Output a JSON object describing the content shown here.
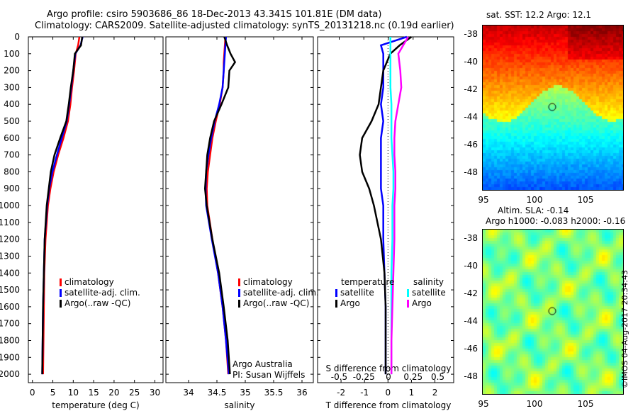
{
  "title": {
    "line1": "Argo profile: csiro 5903686_86 18-Dec-2013 43.341S 101.81E (DM data)",
    "line2": "Climatology: CARS2009. Satellite-adjusted climatology: synTS_20131218.nc (0.19d earlier)"
  },
  "colors": {
    "climatology": "#ff0000",
    "satellite": "#0000ff",
    "argo": "#000000",
    "sal_sat": "#00ffff",
    "sal_argo": "#ff00ff"
  },
  "chart_data": [
    {
      "type": "line",
      "xlabel": "temperature (deg C)",
      "ylabel": "",
      "xlim": [
        -1,
        32
      ],
      "ylim": [
        2050,
        0
      ],
      "xticks": [
        "0",
        "5",
        "10",
        "15",
        "20",
        "25",
        "30"
      ],
      "yticks": [
        "0",
        "100",
        "200",
        "300",
        "400",
        "500",
        "600",
        "700",
        "800",
        "900",
        "1000",
        "1100",
        "1200",
        "1300",
        "1400",
        "1500",
        "1600",
        "1700",
        "1800",
        "1900",
        "2000"
      ],
      "legend": [
        "climatology",
        "satellite-adj. clim.",
        "Argo(..raw -QC)"
      ],
      "depth": [
        0,
        50,
        100,
        200,
        300,
        400,
        500,
        600,
        700,
        800,
        900,
        1000,
        1200,
        1400,
        1600,
        1800,
        2000
      ],
      "series": [
        {
          "name": "climatology",
          "values": [
            11.5,
            11.2,
            10.6,
            10.2,
            9.7,
            9.3,
            8.7,
            7.6,
            6.3,
            5.2,
            4.4,
            3.8,
            3.2,
            2.9,
            2.8,
            2.7,
            2.6
          ]
        },
        {
          "name": "satellite-adj. clim.",
          "values": [
            12.3,
            11.8,
            10.5,
            10.0,
            9.5,
            9.0,
            8.4,
            7.2,
            6.0,
            4.9,
            4.1,
            3.6,
            3.0,
            2.8,
            2.6,
            2.5,
            2.4
          ]
        },
        {
          "name": "Argo(..raw -QC)",
          "values": [
            12.2,
            11.9,
            10.4,
            10.0,
            9.4,
            8.9,
            8.3,
            6.8,
            5.4,
            4.5,
            4.0,
            3.5,
            3.0,
            2.8,
            2.6,
            2.5,
            2.4
          ]
        }
      ]
    },
    {
      "type": "line",
      "xlabel": "salinity",
      "xlim": [
        33.6,
        36.2
      ],
      "ylim": [
        2050,
        0
      ],
      "xticks": [
        "34",
        "34.5",
        "35",
        "35.5",
        "36"
      ],
      "legend": [
        "climatology",
        "satellite-adj. clim.",
        "Argo(..raw -QC)"
      ],
      "annotation": [
        "Argo Australia",
        "PI: Susan Wijffels"
      ],
      "depth": [
        0,
        50,
        100,
        150,
        200,
        300,
        400,
        500,
        600,
        700,
        800,
        900,
        1000,
        1200,
        1400,
        1600,
        1800,
        2000
      ],
      "series": [
        {
          "name": "climatology",
          "values": [
            34.65,
            34.64,
            34.63,
            34.62,
            34.62,
            34.6,
            34.55,
            34.48,
            34.42,
            34.38,
            34.34,
            34.32,
            34.33,
            34.42,
            34.52,
            34.6,
            34.66,
            34.7
          ]
        },
        {
          "name": "satellite-adj. clim.",
          "values": [
            34.66,
            34.65,
            34.64,
            34.63,
            34.62,
            34.6,
            34.54,
            34.46,
            34.4,
            34.35,
            34.31,
            34.3,
            34.31,
            34.41,
            34.52,
            34.6,
            34.66,
            34.71
          ]
        },
        {
          "name": "Argo(..raw -QC)",
          "values": [
            34.63,
            34.68,
            34.74,
            34.82,
            34.72,
            34.7,
            34.58,
            34.45,
            34.38,
            34.33,
            34.31,
            34.29,
            34.32,
            34.42,
            34.54,
            34.62,
            34.69,
            34.73
          ]
        }
      ]
    },
    {
      "type": "line",
      "xlabel": "T difference from climatology",
      "x2label": "S difference from climatology",
      "xlim": [
        -3,
        2.8
      ],
      "x2lim": [
        -0.5,
        0.5
      ],
      "xticks": [
        "-2",
        "-1",
        "0",
        "1",
        "2"
      ],
      "x2ticks": [
        "-0.5",
        "-0.25",
        "0",
        "0.25",
        "0.5"
      ],
      "legend_titles": [
        "temperature",
        "salinity"
      ],
      "legend": [
        "satellite",
        "Argo",
        "satellite",
        "Argo"
      ],
      "depth": [
        0,
        50,
        100,
        200,
        300,
        400,
        500,
        600,
        700,
        800,
        900,
        1000,
        1200,
        1400,
        1600,
        1800,
        2000
      ],
      "series": [
        {
          "name": "T satellite",
          "values": [
            0.8,
            -0.3,
            -0.2,
            -0.2,
            -0.2,
            -0.3,
            -0.2,
            -0.3,
            -0.3,
            -0.3,
            -0.3,
            -0.2,
            -0.2,
            -0.15,
            -0.1,
            -0.1,
            -0.1
          ]
        },
        {
          "name": "T Argo",
          "values": [
            1.0,
            0.5,
            0.1,
            -0.2,
            -0.3,
            -0.4,
            -0.7,
            -1.1,
            -1.2,
            -1.1,
            -0.8,
            -0.6,
            -0.3,
            -0.15,
            -0.1,
            -0.1,
            -0.1
          ]
        },
        {
          "name": "S satellite",
          "values": [
            0.02,
            0.02,
            0.02,
            0.02,
            0.02,
            0.03,
            0.03,
            0.03,
            0.04,
            0.05,
            0.05,
            0.04,
            0.04,
            0.03,
            0.03,
            0.03,
            0.03
          ]
        },
        {
          "name": "S Argo",
          "values": [
            0.2,
            0.15,
            0.1,
            0.12,
            0.13,
            0.1,
            0.07,
            0.06,
            0.06,
            0.07,
            0.07,
            0.06,
            0.06,
            0.05,
            0.04,
            0.03,
            0.03
          ]
        }
      ]
    }
  ],
  "maps": {
    "sst_title": "sat. SST: 12.2 Argo: 12.1",
    "sla_title1": "Altim. SLA: -0.14",
    "sla_title2": "Argo h1000: -0.083 h2000: -0.16",
    "yticks": [
      "-38",
      "-40",
      "-42",
      "-44",
      "-46",
      "-48"
    ],
    "xticks": [
      "95",
      "100",
      "105"
    ],
    "credit": "©IMOS 04-Aug-2017 20:34:43"
  }
}
